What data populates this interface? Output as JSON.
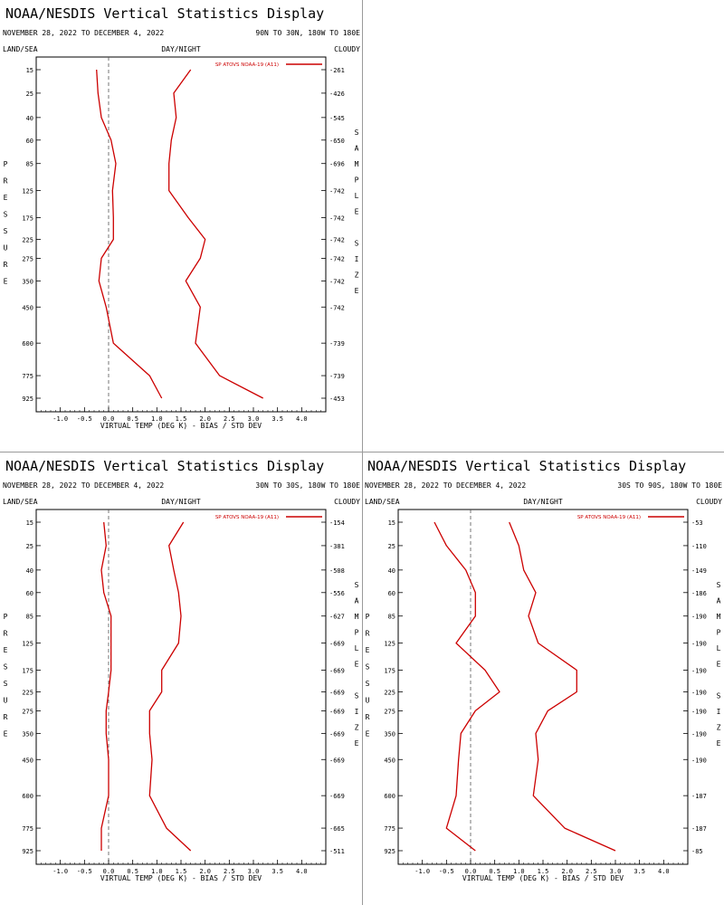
{
  "header": {
    "title": "NOAA/NESDIS Vertical Statistics Display",
    "date_range": "NOVEMBER 28, 2022 TO DECEMBER 4, 2022",
    "labels": {
      "land_sea": "LAND/SEA",
      "day_night": "DAY/NIGHT",
      "cloudy": "CLOUDY",
      "pressure_letters": [
        "P",
        "R",
        "E",
        "S",
        "S",
        "U",
        "R",
        "E"
      ],
      "sample_size_letters": [
        "S",
        "A",
        "M",
        "P",
        "L",
        "E",
        "",
        "S",
        "I",
        "Z",
        "E"
      ]
    }
  },
  "colors": {
    "series": "#cc0000",
    "axis": "#000000",
    "zero_line": "#555555",
    "divider": "#9a9a9a"
  },
  "chart_data": [
    {
      "type": "line",
      "region": "90N TO 30N, 180W TO 180E",
      "legend": "SP ATOVS NOAA-19 (A11)",
      "xlabel": "VIRTUAL TEMP (DEG K) - BIAS / STD DEV",
      "xlim": [
        -1.5,
        4.5
      ],
      "xticks": [
        "-1.0",
        "-0.5",
        "0.0",
        "0.5",
        "1.0",
        "1.5",
        "2.0",
        "2.5",
        "3.0",
        "3.5",
        "4.0"
      ],
      "pressure_levels": [
        "15",
        "25",
        "40",
        "60",
        "85",
        "125",
        "175",
        "225",
        "275",
        "350",
        "450",
        "600",
        "775",
        "925"
      ],
      "sample_size": [
        "261",
        "426",
        "545",
        "650",
        "696",
        "742",
        "742",
        "742",
        "742",
        "742",
        "742",
        "739",
        "739",
        "453"
      ],
      "series": [
        {
          "name": "bias",
          "values": [
            -0.25,
            -0.22,
            -0.15,
            0.05,
            0.15,
            0.08,
            0.1,
            0.1,
            -0.15,
            -0.2,
            -0.05,
            0.1,
            0.85,
            1.1
          ]
        },
        {
          "name": "std_dev",
          "values": [
            1.7,
            1.35,
            1.4,
            1.3,
            1.25,
            1.25,
            1.65,
            2.0,
            1.9,
            1.6,
            1.9,
            1.8,
            2.3,
            3.2
          ]
        }
      ]
    },
    {
      "type": "line",
      "region": "30N TO 30S, 180W TO 180E",
      "legend": "SP ATOVS NOAA-19 (A11)",
      "xlabel": "VIRTUAL TEMP (DEG K) - BIAS / STD DEV",
      "xlim": [
        -1.5,
        4.5
      ],
      "xticks": [
        "-1.0",
        "-0.5",
        "0.0",
        "0.5",
        "1.0",
        "1.5",
        "2.0",
        "2.5",
        "3.0",
        "3.5",
        "4.0"
      ],
      "pressure_levels": [
        "15",
        "25",
        "40",
        "60",
        "85",
        "125",
        "175",
        "225",
        "275",
        "350",
        "450",
        "600",
        "775",
        "925"
      ],
      "sample_size": [
        "154",
        "381",
        "508",
        "556",
        "627",
        "669",
        "669",
        "669",
        "669",
        "669",
        "669",
        "669",
        "665",
        "511"
      ],
      "series": [
        {
          "name": "bias",
          "values": [
            -0.1,
            -0.05,
            -0.15,
            -0.1,
            0.05,
            0.05,
            0.05,
            0.0,
            -0.05,
            -0.05,
            0.0,
            0.0,
            -0.15,
            -0.15
          ]
        },
        {
          "name": "std_dev",
          "values": [
            1.55,
            1.25,
            1.35,
            1.45,
            1.5,
            1.45,
            1.1,
            1.1,
            0.85,
            0.85,
            0.9,
            0.85,
            1.2,
            1.7
          ]
        }
      ]
    },
    {
      "type": "line",
      "region": "30S TO 90S, 180W TO 180E",
      "legend": "SP ATOVS NOAA-19 (A11)",
      "xlabel": "VIRTUAL TEMP (DEG K) - BIAS / STD DEV",
      "xlim": [
        -1.5,
        4.5
      ],
      "xticks": [
        "-1.0",
        "-0.5",
        "0.0",
        "0.5",
        "1.0",
        "1.5",
        "2.0",
        "2.5",
        "3.0",
        "3.5",
        "4.0"
      ],
      "pressure_levels": [
        "15",
        "25",
        "40",
        "60",
        "85",
        "125",
        "175",
        "225",
        "275",
        "350",
        "450",
        "600",
        "775",
        "925"
      ],
      "sample_size": [
        "53",
        "110",
        "149",
        "186",
        "190",
        "190",
        "190",
        "190",
        "190",
        "190",
        "190",
        "187",
        "187",
        "85"
      ],
      "series": [
        {
          "name": "bias",
          "values": [
            -0.75,
            -0.5,
            -0.1,
            0.1,
            0.1,
            -0.3,
            0.3,
            0.6,
            0.1,
            -0.2,
            -0.25,
            -0.3,
            -0.5,
            0.1
          ]
        },
        {
          "name": "std_dev",
          "values": [
            0.8,
            1.0,
            1.1,
            1.35,
            1.2,
            1.4,
            2.2,
            2.2,
            1.6,
            1.35,
            1.4,
            1.3,
            1.95,
            3.0
          ]
        }
      ]
    }
  ]
}
